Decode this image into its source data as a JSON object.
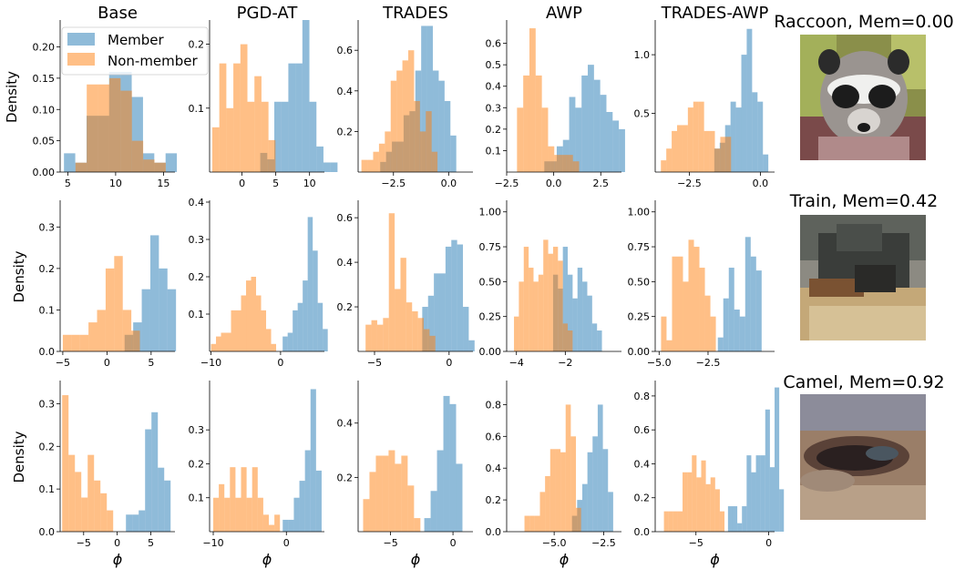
{
  "legend": {
    "member": "Member",
    "non_member": "Non-member"
  },
  "colors": {
    "member": "#1f77b4",
    "non_member": "#ff7f0e"
  },
  "column_titles": [
    "Base",
    "PGD-AT",
    "TRADES",
    "AWP",
    "TRADES-AWP"
  ],
  "ylabel": "Density",
  "xlabel": "ϕ",
  "images": [
    {
      "title": "Raccoon, Mem=0.00"
    },
    {
      "title": "Train, Mem=0.42"
    },
    {
      "title": "Camel, Mem=0.92"
    }
  ],
  "chart_data": [
    {
      "type": "histogram",
      "row": 0,
      "col": 0,
      "title": "Base",
      "ylabel": "Density",
      "xlim": [
        4.2,
        16.2
      ],
      "ylim": [
        0,
        0.24
      ],
      "xticks": [
        5,
        10,
        15
      ],
      "xticklabels": [
        "5",
        "10",
        "15"
      ],
      "yticks": [
        0,
        0.05,
        0.1,
        0.15,
        0.2
      ],
      "yticklabels": [
        "0.00",
        "0.05",
        "0.10",
        "0.15",
        "0.20"
      ],
      "legend": "upper-right",
      "member": {
        "start": 4.6,
        "width": 1.18,
        "values": [
          0.03,
          0.015,
          0.09,
          0.09,
          0.16,
          0.16,
          0.12,
          0.03,
          0.015,
          0.03
        ]
      },
      "non_member": {
        "start": 5.8,
        "width": 1.18,
        "values": [
          0.015,
          0.14,
          0.14,
          0.15,
          0.13,
          0.05,
          0.02,
          0.015
        ]
      }
    },
    {
      "type": "histogram",
      "row": 0,
      "col": 1,
      "title": "PGD-AT",
      "xlim": [
        -4.8,
        12.2
      ],
      "ylim": [
        0,
        0.235
      ],
      "xticks": [
        0,
        5,
        10
      ],
      "xticklabels": [
        "0",
        "5",
        "10"
      ],
      "yticks": [
        0.1,
        0.2
      ],
      "yticklabels": [
        "0.1",
        "0.2"
      ],
      "member": {
        "start": 2.7,
        "width": 1.04,
        "values": [
          0.03,
          0.02,
          0.11,
          0.11,
          0.17,
          0.17,
          0.24,
          0.11,
          0.04,
          0.015,
          0.015
        ]
      },
      "non_member": {
        "start": -4.4,
        "width": 1.04,
        "values": [
          0.07,
          0.17,
          0.1,
          0.17,
          0.2,
          0.11,
          0.15,
          0.11,
          0.05
        ]
      }
    },
    {
      "type": "histogram",
      "row": 0,
      "col": 2,
      "title": "TRADES",
      "xlim": [
        -4.1,
        1.1
      ],
      "ylim": [
        0,
        0.74
      ],
      "xticks": [
        -2.5,
        0
      ],
      "xticklabels": [
        "−2.5",
        "0.0"
      ],
      "yticks": [
        0.2,
        0.4,
        0.6
      ],
      "yticklabels": [
        "0.2",
        "0.4",
        "0.6"
      ],
      "member": {
        "start": -3.1,
        "width": 0.265,
        "values": [
          0.05,
          0.1,
          0.15,
          0.15,
          0.28,
          0.3,
          0.5,
          0.72,
          0.72,
          0.5,
          0.45,
          0.35,
          0.18
        ]
      },
      "non_member": {
        "start": -3.95,
        "width": 0.265,
        "values": [
          0.06,
          0.06,
          0.1,
          0.14,
          0.2,
          0.45,
          0.5,
          0.55,
          0.6,
          0.35,
          0.2,
          0.3,
          0.1
        ]
      }
    },
    {
      "type": "histogram",
      "row": 0,
      "col": 3,
      "title": "AWP",
      "xlim": [
        -2.5,
        3.6
      ],
      "ylim": [
        0,
        0.7
      ],
      "xticks": [
        -2.5,
        0,
        2.5
      ],
      "xticklabels": [
        "−2.5",
        "0.0",
        "2.5"
      ],
      "yticks": [
        0.1,
        0.2,
        0.3,
        0.4,
        0.5,
        0.6
      ],
      "yticklabels": [
        "0.1",
        "0.2",
        "0.3",
        "0.4",
        "0.5",
        "0.6"
      ],
      "member": {
        "start": -0.5,
        "width": 0.33,
        "values": [
          0.05,
          0.05,
          0.12,
          0.15,
          0.35,
          0.3,
          0.45,
          0.5,
          0.43,
          0.36,
          0.28,
          0.24,
          0.2
        ]
      },
      "non_member": {
        "start": -1.95,
        "width": 0.33,
        "values": [
          0.3,
          0.45,
          0.67,
          0.45,
          0.3,
          0.12,
          0.08,
          0.08,
          0.08,
          0.05
        ]
      }
    },
    {
      "type": "histogram",
      "row": 0,
      "col": 4,
      "title": "TRADES-AWP",
      "xlim": [
        -3.7,
        0.5
      ],
      "ylim": [
        0,
        1.28
      ],
      "xticks": [
        -2.5,
        0
      ],
      "xticklabels": [
        "−2.5",
        "0.0"
      ],
      "yticks": [
        0.5,
        1.0
      ],
      "yticklabels": [
        "0.5",
        "1.0"
      ],
      "member": {
        "start": -1.62,
        "width": 0.19,
        "values": [
          0.2,
          0.25,
          0.4,
          0.6,
          0.55,
          1.0,
          1.22,
          0.68,
          0.6,
          0.15
        ]
      },
      "non_member": {
        "start": -3.5,
        "width": 0.19,
        "values": [
          0.1,
          0.2,
          0.35,
          0.4,
          0.4,
          0.55,
          0.6,
          0.6,
          0.35,
          0.35,
          0.2,
          0.3,
          0.3
        ]
      }
    },
    {
      "type": "histogram",
      "row": 1,
      "col": 0,
      "ylabel": "Density",
      "xlim": [
        -5.3,
        7.7
      ],
      "ylim": [
        0,
        0.36
      ],
      "xticks": [
        -5,
        0,
        5
      ],
      "xticklabels": [
        "−5",
        "0",
        "5"
      ],
      "yticks": [
        0,
        0.1,
        0.2,
        0.3
      ],
      "yticklabels": [
        "0.0",
        "0.1",
        "0.2",
        "0.3"
      ],
      "member": {
        "start": 2,
        "width": 0.97,
        "values": [
          0.04,
          0.07,
          0.15,
          0.28,
          0.2,
          0.15
        ]
      },
      "non_member": {
        "start": -5,
        "width": 0.97,
        "values": [
          0.04,
          0.04,
          0.04,
          0.07,
          0.1,
          0.2,
          0.23,
          0.1,
          0.05
        ]
      }
    },
    {
      "type": "histogram",
      "row": 1,
      "col": 1,
      "xlim": [
        -10.2,
        6.3
      ],
      "ylim": [
        0,
        0.4
      ],
      "xticks": [
        -10,
        0
      ],
      "xticklabels": [
        "−10",
        "0"
      ],
      "yticks": [
        0.1,
        0.2,
        0.3,
        0.4
      ],
      "yticklabels": [
        "0.1",
        "0.2",
        "0.3",
        "0.4"
      ],
      "member": {
        "start": 0.3,
        "width": 0.72,
        "values": [
          0.04,
          0.05,
          0.11,
          0.13,
          0.19,
          0.36,
          0.27,
          0.13,
          0.06
        ]
      },
      "non_member": {
        "start": -10,
        "width": 0.72,
        "values": [
          0.02,
          0.04,
          0.05,
          0.05,
          0.11,
          0.11,
          0.15,
          0.19,
          0.2,
          0.15,
          0.11,
          0.06,
          0.02
        ]
      }
    },
    {
      "type": "histogram",
      "row": 1,
      "col": 2,
      "xlim": [
        -6.1,
        1.6
      ],
      "ylim": [
        0,
        0.67
      ],
      "xticks": [
        -5,
        0
      ],
      "xticklabels": [
        "−5",
        "0"
      ],
      "yticks": [
        0.2,
        0.4,
        0.6
      ],
      "yticklabels": [
        "0.2",
        "0.4",
        "0.6"
      ],
      "member": {
        "start": -1.8,
        "width": 0.39,
        "values": [
          0.2,
          0.25,
          0.35,
          0.35,
          0.47,
          0.5,
          0.48,
          0.2,
          0.05
        ]
      },
      "non_member": {
        "start": -5.6,
        "width": 0.39,
        "values": [
          0.12,
          0.14,
          0.12,
          0.15,
          0.62,
          0.28,
          0.42,
          0.22,
          0.18,
          0.15,
          0.1,
          0.07
        ]
      }
    },
    {
      "type": "histogram",
      "row": 1,
      "col": 3,
      "xlim": [
        -4.4,
        0.3
      ],
      "ylim": [
        0,
        1.07
      ],
      "xticks": [
        -4,
        -2
      ],
      "xticklabels": [
        "−4",
        "−2"
      ],
      "yticks": [
        0,
        0.25,
        0.5,
        0.75,
        1.0
      ],
      "yticklabels": [
        "0.00",
        "0.25",
        "0.50",
        "0.75",
        "1.00"
      ],
      "member": {
        "start": -2.5,
        "width": 0.2,
        "values": [
          0.55,
          0.45,
          0.75,
          0.55,
          0.38,
          0.6,
          0.5,
          0.4,
          0.2,
          0.15
        ]
      },
      "non_member": {
        "start": -4.1,
        "width": 0.2,
        "values": [
          0.25,
          0.5,
          0.75,
          0.6,
          0.5,
          0.55,
          0.8,
          0.7,
          0.75,
          0.65,
          0.2,
          0.15
        ]
      }
    },
    {
      "type": "histogram",
      "row": 1,
      "col": 4,
      "xlim": [
        -5.2,
        0.9
      ],
      "ylim": [
        0,
        1.07
      ],
      "xticks": [
        -5,
        -2.5
      ],
      "xticklabels": [
        "−5.0",
        "−2.5"
      ],
      "yticks": [
        0,
        0.25,
        0.5,
        0.75,
        1.0
      ],
      "yticklabels": [
        "0.00",
        "0.25",
        "0.50",
        "0.75",
        "1.00"
      ],
      "member": {
        "start": -2,
        "width": 0.28,
        "values": [
          0.1,
          0.38,
          0.6,
          0.3,
          0.25,
          0.82,
          0.68,
          0.58
        ]
      },
      "non_member": {
        "start": -4.9,
        "width": 0.28,
        "values": [
          0.25,
          0.08,
          0.68,
          0.68,
          0.5,
          0.8,
          0.75,
          0.6,
          0.4,
          0.25
        ]
      }
    },
    {
      "type": "histogram",
      "row": 2,
      "col": 0,
      "ylabel": "Density",
      "xlabel": "ϕ",
      "xlim": [
        -8.5,
        8.6
      ],
      "ylim": [
        0,
        0.35
      ],
      "xticks": [
        -5,
        0,
        5
      ],
      "xticklabels": [
        "−5",
        "0",
        "5"
      ],
      "yticks": [
        0,
        0.1,
        0.2,
        0.3
      ],
      "yticklabels": [
        "0.0",
        "0.1",
        "0.2",
        "0.3"
      ],
      "member": {
        "start": 1.3,
        "width": 0.95,
        "values": [
          0.04,
          0.04,
          0.05,
          0.24,
          0.28,
          0.15,
          0.12
        ]
      },
      "non_member": {
        "start": -8.2,
        "width": 0.95,
        "values": [
          0.32,
          0.18,
          0.14,
          0.08,
          0.18,
          0.12,
          0.09,
          0.05
        ]
      }
    },
    {
      "type": "histogram",
      "row": 2,
      "col": 1,
      "xlabel": "ϕ",
      "xlim": [
        -10.5,
        5.2
      ],
      "ylim": [
        0,
        0.44
      ],
      "xticks": [
        -10,
        0
      ],
      "xticklabels": [
        "−10",
        "0"
      ],
      "yticks": [
        0.1,
        0.2,
        0.3
      ],
      "yticklabels": [
        "0.1",
        "0.2",
        "0.3"
      ],
      "member": {
        "start": -0.5,
        "width": 0.76,
        "values": [
          0.035,
          0.035,
          0.1,
          0.15,
          0.24,
          0.42,
          0.18
        ]
      },
      "non_member": {
        "start": -10,
        "width": 0.76,
        "values": [
          0.1,
          0.14,
          0.1,
          0.19,
          0.1,
          0.19,
          0.1,
          0.19,
          0.1,
          0.05,
          0.02,
          0.05
        ]
      }
    },
    {
      "type": "histogram",
      "row": 2,
      "col": 2,
      "xlabel": "ϕ",
      "xlim": [
        -7.6,
        1.6
      ],
      "ylim": [
        0,
        0.55
      ],
      "xticks": [
        -5,
        0
      ],
      "xticklabels": [
        "−5",
        "0"
      ],
      "yticks": [
        0.2,
        0.4
      ],
      "yticklabels": [
        "0.2",
        "0.4"
      ],
      "member": {
        "start": -2.3,
        "width": 0.51,
        "values": [
          0.05,
          0.15,
          0.3,
          0.5,
          0.47,
          0.25
        ]
      },
      "non_member": {
        "start": -7.2,
        "width": 0.51,
        "values": [
          0.12,
          0.22,
          0.28,
          0.28,
          0.3,
          0.25,
          0.28,
          0.17,
          0.05
        ]
      }
    },
    {
      "type": "histogram",
      "row": 2,
      "col": 3,
      "xlabel": "ϕ",
      "xlim": [
        -7.4,
        -1.6
      ],
      "ylim": [
        0,
        0.94
      ],
      "xticks": [
        -5,
        -2.5
      ],
      "xticklabels": [
        "−5.0",
        "−2.5"
      ],
      "yticks": [
        0,
        0.2,
        0.4,
        0.6,
        0.8
      ],
      "yticklabels": [
        "0.0",
        "0.2",
        "0.4",
        "0.6",
        "0.8"
      ],
      "member": {
        "start": -4.1,
        "width": 0.26,
        "values": [
          0.1,
          0.2,
          0.3,
          0.5,
          0.6,
          0.8,
          0.52,
          0.25
        ]
      },
      "non_member": {
        "start": -6.5,
        "width": 0.26,
        "values": [
          0.1,
          0.1,
          0.1,
          0.25,
          0.35,
          0.52,
          0.52,
          0.5,
          0.8,
          0.6,
          0.15
        ]
      }
    },
    {
      "type": "histogram",
      "row": 2,
      "col": 4,
      "xlabel": "ϕ",
      "xlim": [
        -7.8,
        0.4
      ],
      "ylim": [
        0,
        0.88
      ],
      "xticks": [
        -5,
        0
      ],
      "xticklabels": [
        "−5",
        "0"
      ],
      "yticks": [
        0,
        0.2,
        0.4,
        0.6,
        0.8
      ],
      "yticklabels": [
        "0.0",
        "0.2",
        "0.4",
        "0.6",
        "0.8"
      ],
      "member": {
        "start": -2.8,
        "width": 0.32,
        "values": [
          0.15,
          0.15,
          0.05,
          0.15,
          0.45,
          0.35,
          0.45,
          0.45,
          0.72,
          0.38,
          0.85,
          0.25
        ]
      },
      "non_member": {
        "start": -7.2,
        "width": 0.32,
        "values": [
          0.12,
          0.12,
          0.12,
          0.12,
          0.35,
          0.35,
          0.45,
          0.32,
          0.42,
          0.28,
          0.32,
          0.25,
          0.12
        ]
      }
    }
  ]
}
